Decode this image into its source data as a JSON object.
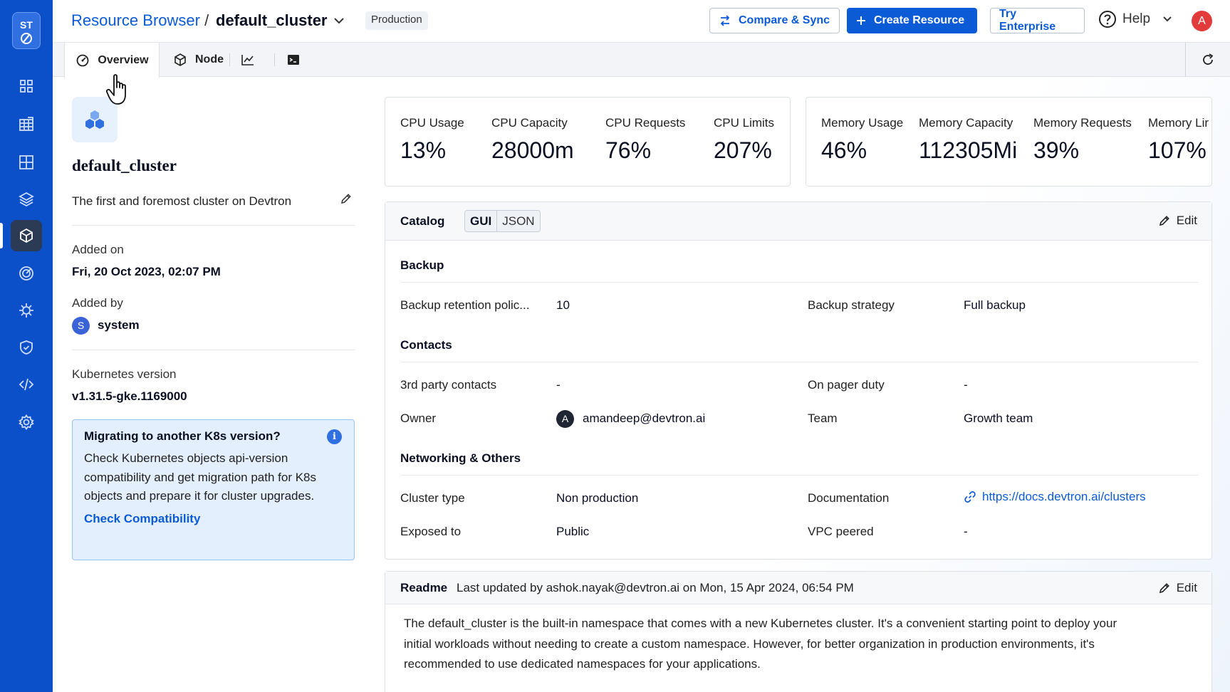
{
  "sidebar": {
    "logo_text": "ST",
    "nav_icons": [
      "apps-grid-icon",
      "charts-grid-icon",
      "app-groups-icon",
      "stack-icon",
      "resource-browser-icon",
      "target-icon",
      "bug-icon",
      "security-shield-icon",
      "code-icon",
      "settings-icon"
    ],
    "active_index": 4
  },
  "header": {
    "breadcrumb_root": "Resource Browser",
    "breadcrumb_sep": "/",
    "cluster": "default_cluster",
    "env_badge": "Production",
    "compare_label": "Compare & Sync",
    "create_label": "Create Resource",
    "enterprise_label": "Try Enterprise",
    "help_label": "Help",
    "avatar_letter": "A"
  },
  "tabs": {
    "overview": "Overview",
    "node": "Node"
  },
  "cluster_info": {
    "name": "default_cluster",
    "description": "The first and foremost cluster on Devtron",
    "added_on_label": "Added on",
    "added_on": "Fri, 20 Oct 2023, 02:07 PM",
    "added_by_label": "Added by",
    "added_by_initial": "S",
    "added_by": "system",
    "k8s_label": "Kubernetes version",
    "k8s_version": "v1.31.5-gke.1169000"
  },
  "migration": {
    "title": "Migrating to another K8s version?",
    "body": "Check Kubernetes objects api-version compatibility and get migration path for K8s objects and prepare it for cluster upgrades.",
    "link": "Check Compatibility",
    "info_glyph": "i"
  },
  "metrics": {
    "cpu": [
      {
        "label": "CPU Usage",
        "value": "13%"
      },
      {
        "label": "CPU Capacity",
        "value": "28000m"
      },
      {
        "label": "CPU Requests",
        "value": "76%"
      },
      {
        "label": "CPU Limits",
        "value": "207%"
      }
    ],
    "memory": [
      {
        "label": "Memory Usage",
        "value": "46%"
      },
      {
        "label": "Memory Capacity",
        "value": "112305Mi"
      },
      {
        "label": "Memory Requests",
        "value": "39%"
      },
      {
        "label": "Memory Lir",
        "value": "107%"
      }
    ]
  },
  "catalog": {
    "title": "Catalog",
    "gui": "GUI",
    "json": "JSON",
    "edit": "Edit",
    "sections": {
      "backup": "Backup",
      "contacts": "Contacts",
      "networking": "Networking & Others"
    },
    "backup_retention_key": "Backup retention polic...",
    "backup_retention_val": "10",
    "backup_strategy_key": "Backup strategy",
    "backup_strategy_val": "Full backup",
    "third_party_key": "3rd party contacts",
    "third_party_val": "-",
    "pager_key": "On pager duty",
    "pager_val": "-",
    "owner_key": "Owner",
    "owner_initial": "A",
    "owner_val": "amandeep@devtron.ai",
    "team_key": "Team",
    "team_val": "Growth team",
    "cluster_type_key": "Cluster type",
    "cluster_type_val": "Non production",
    "doc_key": "Documentation",
    "doc_val": "https://docs.devtron.ai/clusters",
    "exposed_key": "Exposed to",
    "exposed_val": "Public",
    "vpc_key": "VPC peered",
    "vpc_val": "-"
  },
  "readme": {
    "title": "Readme",
    "meta": "Last updated by ashok.nayak@devtron.ai on Mon, 15 Apr 2024, 06:54 PM",
    "edit": "Edit",
    "body_line1": "The default_cluster is the built-in namespace that comes with a new Kubernetes cluster. It's a convenient starting point to deploy your",
    "body_line2": "initial workloads without needing to create a custom namespace. However, for better organization in production environments, it's",
    "body_line3": "recommended to use dedicated namespaces for your applications."
  },
  "colors": {
    "rail": "#0b4fc9",
    "primary": "#0b5bd6",
    "avatar_top": "#e23b3b"
  }
}
